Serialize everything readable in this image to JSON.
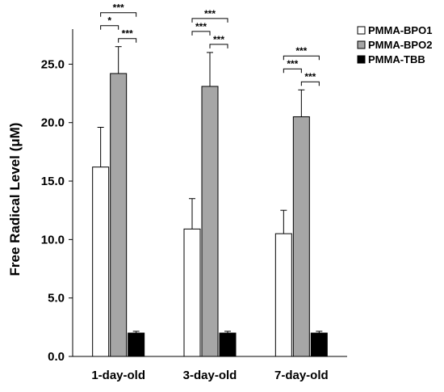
{
  "chart_data": {
    "type": "bar",
    "title": "",
    "xlabel": "",
    "ylabel": "Free Radical Level (μM)",
    "ylim": [
      0,
      28
    ],
    "yticks": [
      0,
      5,
      10,
      15,
      20,
      25
    ],
    "ytick_labels": [
      "0.0",
      "5.0",
      "10.0",
      "15.0",
      "20.0",
      "25.0"
    ],
    "grid": false,
    "legend_position": "top-right",
    "categories": [
      "1-day-old",
      "3-day-old",
      "7-day-old"
    ],
    "series": [
      {
        "name": "PMMA-BPO1",
        "color": "#ffffff",
        "values": [
          16.2,
          10.9,
          10.5
        ],
        "errors": [
          3.4,
          2.6,
          2.0
        ]
      },
      {
        "name": "PMMA-BPO2",
        "color": "#a6a6a6",
        "values": [
          24.2,
          23.1,
          20.5
        ],
        "errors": [
          2.3,
          2.9,
          2.3
        ]
      },
      {
        "name": "PMMA-TBB",
        "color": "#000000",
        "values": [
          2.0,
          2.0,
          2.0
        ],
        "errors": [
          0.15,
          0.15,
          0.15
        ]
      }
    ],
    "significance": [
      {
        "category": 0,
        "from": 0,
        "to": 1,
        "label": "*"
      },
      {
        "category": 0,
        "from": 1,
        "to": 2,
        "label": "***"
      },
      {
        "category": 0,
        "from": 0,
        "to": 2,
        "label": "***"
      },
      {
        "category": 1,
        "from": 0,
        "to": 1,
        "label": "***"
      },
      {
        "category": 1,
        "from": 1,
        "to": 2,
        "label": "***"
      },
      {
        "category": 1,
        "from": 0,
        "to": 2,
        "label": "***"
      },
      {
        "category": 2,
        "from": 0,
        "to": 1,
        "label": "***"
      },
      {
        "category": 2,
        "from": 1,
        "to": 2,
        "label": "***"
      },
      {
        "category": 2,
        "from": 0,
        "to": 2,
        "label": "***"
      }
    ]
  }
}
